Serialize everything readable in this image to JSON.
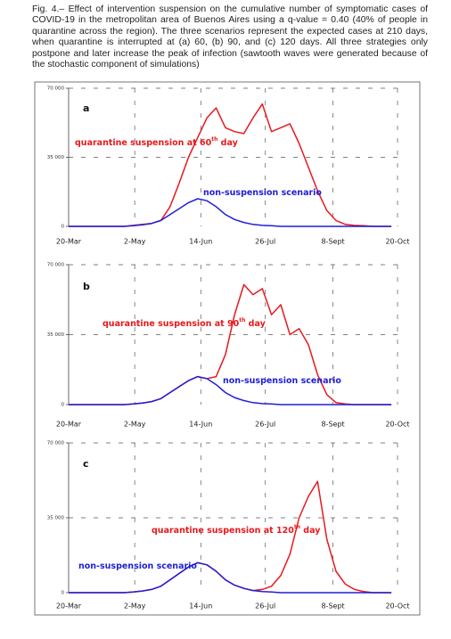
{
  "caption": "Fig. 4.– Effect of intervention suspension on the cumulative number of symptomatic cases of COVID-19 in the metropolitan area of Buenos Aires using a q-value = 0.40 (40% of people in quarantine across the region). The three scenarios represent the expected cases at 210 days, when quarantine is interrupted at (a) 60, (b) 90, and (c) 120 days. All three strategies only postpone and later increase the peak of infection (sawtooth waves were generated because of the stochastic component of simulations)",
  "chart_data": [
    {
      "type": "line",
      "panel_label": "a",
      "annotations": [
        {
          "text": "quarantine suspension at 60",
          "sup": "th",
          "tail": " day",
          "color": "#e8191c"
        },
        {
          "text": "non-suspension scenario",
          "color": "#1f1fd6"
        }
      ],
      "x": [
        0,
        6,
        12,
        18,
        24,
        30,
        36,
        42,
        48,
        54,
        60,
        66,
        72,
        78,
        84,
        90,
        96,
        102,
        108,
        114,
        120,
        126,
        132,
        138,
        144,
        150,
        156,
        162,
        168,
        174,
        180,
        186,
        192,
        198,
        204,
        210
      ],
      "xlim": [
        0,
        214
      ],
      "xticks": [
        {
          "value": 0,
          "label": "20-Mar"
        },
        {
          "value": 43,
          "label": "2-May"
        },
        {
          "value": 86,
          "label": "14-Jun"
        },
        {
          "value": 128,
          "label": "26-Jul"
        },
        {
          "value": 172,
          "label": "8-Sept"
        },
        {
          "value": 214,
          "label": "20-Oct"
        }
      ],
      "ylim": [
        0,
        70000
      ],
      "yticks": [
        {
          "value": 0,
          "label": "0"
        },
        {
          "value": 35000,
          "label": "35 000"
        },
        {
          "value": 70000,
          "label": "70 000"
        }
      ],
      "grid": true,
      "series": [
        {
          "color": "#e8191c",
          "values": [
            0,
            0,
            0,
            0,
            0,
            0,
            0,
            500,
            1000,
            1500,
            3000,
            10000,
            22000,
            35000,
            45000,
            55000,
            60000,
            50000,
            48000,
            47000,
            55000,
            62000,
            48000,
            50000,
            52000,
            42000,
            30000,
            18000,
            8000,
            3000,
            1000,
            500,
            300,
            0,
            0,
            0
          ]
        },
        {
          "color": "#1f1fd6",
          "values": [
            0,
            0,
            0,
            0,
            0,
            0,
            0,
            300,
            800,
            1500,
            3000,
            6000,
            9000,
            12000,
            14000,
            13000,
            10000,
            6000,
            3500,
            2000,
            1000,
            500,
            300,
            0,
            0,
            0,
            0,
            0,
            0,
            0,
            0,
            0,
            0,
            0,
            0,
            0
          ]
        }
      ]
    },
    {
      "type": "line",
      "panel_label": "b",
      "annotations": [
        {
          "text": "quarantine suspension at 90",
          "sup": "th",
          "tail": " day",
          "color": "#e8191c"
        },
        {
          "text": "non-suspension scenario",
          "color": "#1f1fd6"
        }
      ],
      "x": [
        0,
        6,
        12,
        18,
        24,
        30,
        36,
        42,
        48,
        54,
        60,
        66,
        72,
        78,
        84,
        90,
        96,
        102,
        108,
        114,
        120,
        126,
        132,
        138,
        144,
        150,
        156,
        162,
        168,
        174,
        180,
        186,
        192,
        198,
        204,
        210
      ],
      "xlim": [
        0,
        214
      ],
      "xticks": [
        {
          "value": 0,
          "label": "20-Mar"
        },
        {
          "value": 43,
          "label": "2-May"
        },
        {
          "value": 86,
          "label": "14-Jun"
        },
        {
          "value": 128,
          "label": "26-Jul"
        },
        {
          "value": 172,
          "label": "8-Sept"
        },
        {
          "value": 214,
          "label": "20-Oct"
        }
      ],
      "ylim": [
        0,
        70000
      ],
      "yticks": [
        {
          "value": 0,
          "label": "0"
        },
        {
          "value": 35000,
          "label": "35 000"
        },
        {
          "value": 70000,
          "label": "70 000"
        }
      ],
      "grid": true,
      "series": [
        {
          "color": "#e8191c",
          "values": [
            0,
            0,
            0,
            0,
            0,
            0,
            0,
            300,
            800,
            1500,
            3000,
            6000,
            9000,
            12000,
            14000,
            13000,
            14000,
            25000,
            45000,
            60000,
            55000,
            58000,
            45000,
            50000,
            35000,
            38000,
            30000,
            15000,
            5000,
            1000,
            300,
            0,
            0,
            0,
            0,
            0
          ]
        },
        {
          "color": "#1f1fd6",
          "values": [
            0,
            0,
            0,
            0,
            0,
            0,
            0,
            300,
            800,
            1500,
            3000,
            6000,
            9000,
            12000,
            14000,
            13000,
            10000,
            6000,
            3500,
            2000,
            1000,
            500,
            300,
            0,
            0,
            0,
            0,
            0,
            0,
            0,
            0,
            0,
            0,
            0,
            0,
            0
          ]
        }
      ]
    },
    {
      "type": "line",
      "panel_label": "c",
      "annotations": [
        {
          "text": "quarantine suspension at 120",
          "sup": "th",
          "tail": " day",
          "color": "#e8191c"
        },
        {
          "text": "non-suspension scenario",
          "color": "#1f1fd6"
        }
      ],
      "x": [
        0,
        6,
        12,
        18,
        24,
        30,
        36,
        42,
        48,
        54,
        60,
        66,
        72,
        78,
        84,
        90,
        96,
        102,
        108,
        114,
        120,
        126,
        132,
        138,
        144,
        150,
        156,
        162,
        168,
        174,
        180,
        186,
        192,
        198,
        204,
        210
      ],
      "xlim": [
        0,
        214
      ],
      "xticks": [
        {
          "value": 0,
          "label": "20-Mar"
        },
        {
          "value": 43,
          "label": "2-May"
        },
        {
          "value": 86,
          "label": "14-Jun"
        },
        {
          "value": 128,
          "label": "26-Jul"
        },
        {
          "value": 172,
          "label": "8-Sept"
        },
        {
          "value": 214,
          "label": "20-Oct"
        }
      ],
      "ylim": [
        0,
        70000
      ],
      "yticks": [
        {
          "value": 0,
          "label": "0"
        },
        {
          "value": 35000,
          "label": "35 000"
        },
        {
          "value": 70000,
          "label": "70 000"
        }
      ],
      "grid": true,
      "series": [
        {
          "color": "#e8191c",
          "values": [
            0,
            0,
            0,
            0,
            0,
            0,
            0,
            300,
            800,
            1500,
            3000,
            6000,
            9000,
            12000,
            14000,
            13000,
            10000,
            6000,
            3500,
            2000,
            1000,
            1500,
            3000,
            8000,
            18000,
            35000,
            45000,
            52000,
            25000,
            10000,
            4000,
            1500,
            500,
            0,
            0,
            0
          ]
        },
        {
          "color": "#1f1fd6",
          "values": [
            0,
            0,
            0,
            0,
            0,
            0,
            0,
            300,
            800,
            1500,
            3000,
            6000,
            9000,
            12000,
            14000,
            13000,
            10000,
            6000,
            3500,
            2000,
            1000,
            500,
            300,
            0,
            0,
            0,
            0,
            0,
            0,
            0,
            0,
            0,
            0,
            0,
            0,
            0
          ]
        }
      ]
    }
  ]
}
